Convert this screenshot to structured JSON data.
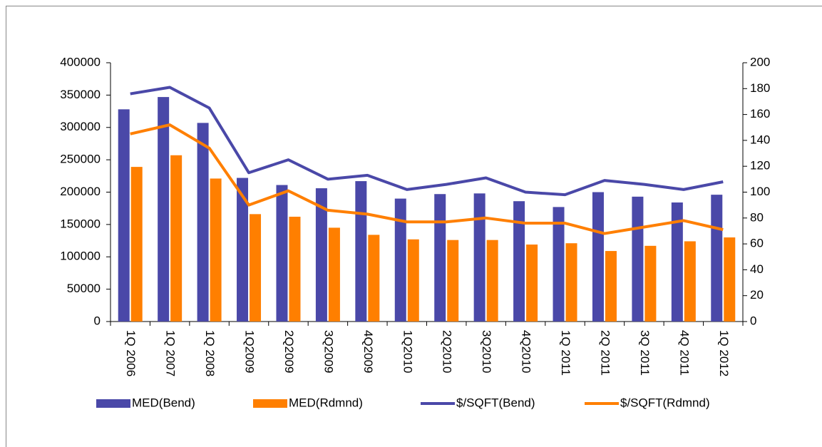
{
  "chart_data": {
    "type": "bar",
    "categories": [
      "1Q 2006",
      "1Q 2007",
      "1Q 2008",
      "1Q2009",
      "2Q2009",
      "3Q2009",
      "4Q2009",
      "1Q2010",
      "2Q2010",
      "3Q2010",
      "4Q2010",
      "1Q 2011",
      "2Q 2011",
      "3Q 2011",
      "4Q 2011",
      "1Q 2012"
    ],
    "series": [
      {
        "name": "MED(Bend)",
        "type": "bar",
        "color": "#4a48a8",
        "values": [
          328000,
          347000,
          307000,
          222000,
          211000,
          206000,
          217000,
          190000,
          197000,
          198000,
          186000,
          177000,
          200000,
          193000,
          184000,
          196000
        ]
      },
      {
        "name": "MED(Rdmnd)",
        "type": "bar",
        "color": "#ff7f00",
        "values": [
          239000,
          257000,
          221000,
          166000,
          162000,
          145000,
          134000,
          127000,
          126000,
          126000,
          119000,
          121000,
          109000,
          117000,
          124000,
          130000
        ]
      },
      {
        "name": "$/SQFT(Bend)",
        "type": "line",
        "axis": "y2",
        "color": "#4a48a8",
        "values": [
          176,
          181,
          165,
          115,
          125,
          110,
          113,
          102,
          106,
          111,
          100,
          98,
          109,
          106,
          102,
          108
        ]
      },
      {
        "name": "$/SQFT(Rdmnd)",
        "type": "line",
        "axis": "y2",
        "color": "#ff7f00",
        "values": [
          145,
          152,
          134,
          90,
          101,
          86,
          83,
          77,
          77,
          80,
          76,
          76,
          68,
          73,
          78,
          71
        ]
      }
    ],
    "ylim": [
      0,
      400000
    ],
    "yticks": [
      0,
      50000,
      100000,
      150000,
      200000,
      250000,
      300000,
      350000,
      400000
    ],
    "y2lim": [
      0,
      200
    ],
    "y2ticks": [
      0,
      20,
      40,
      60,
      80,
      100,
      120,
      140,
      160,
      180,
      200
    ],
    "legend": "bottom"
  }
}
